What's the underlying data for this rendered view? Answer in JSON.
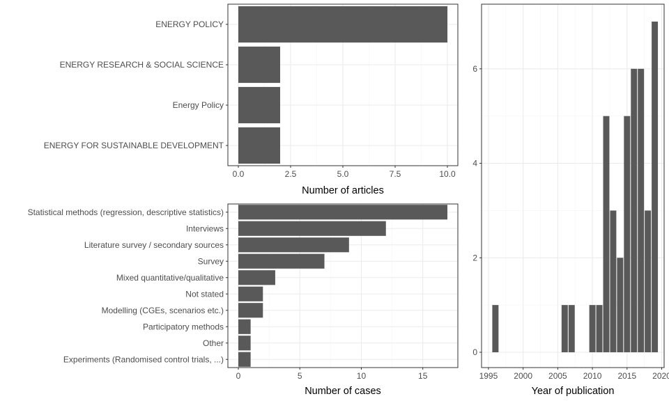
{
  "colors": {
    "bar": "#595959",
    "panel_border": "#333333",
    "grid_major": "#ebebeb",
    "grid_minor": "#f5f5f5",
    "tick_text": "#4d4d4d"
  },
  "chart_data": [
    {
      "type": "bar",
      "orientation": "horizontal",
      "categories": [
        "ENERGY POLICY",
        "ENERGY RESEARCH & SOCIAL SCIENCE",
        "Energy Policy",
        "ENERGY FOR SUSTAINABLE DEVELOPMENT"
      ],
      "values": [
        10,
        2,
        2,
        2
      ],
      "xlabel": "Number of articles",
      "xlim": [
        0,
        10
      ],
      "xticks": [
        0,
        2.5,
        5,
        7.5,
        10
      ],
      "xtick_labels": [
        "0.0",
        "2.5",
        "5.0",
        "7.5",
        "10.0"
      ],
      "grid": true
    },
    {
      "type": "bar",
      "orientation": "horizontal",
      "categories": [
        "Statistical methods (regression, descriptive statistics)",
        "Interviews",
        "Literature survey / secondary sources",
        "Survey",
        "Mixed quantitative/qualitative",
        "Not stated",
        "Modelling (CGEs, scenarios etc.)",
        "Participatory methods",
        "Other",
        "Experiments (Randomised control trials, ...)"
      ],
      "values": [
        17,
        12,
        9,
        7,
        3,
        2,
        2,
        1,
        1,
        1
      ],
      "xlabel": "Number of cases",
      "xlim": [
        0,
        17
      ],
      "xticks": [
        0,
        5,
        10,
        15
      ],
      "xtick_labels": [
        "0",
        "5",
        "10",
        "15"
      ],
      "grid": true
    },
    {
      "type": "bar",
      "orientation": "vertical",
      "x": [
        1996,
        2006,
        2007,
        2010,
        2011,
        2012,
        2013,
        2014,
        2015,
        2016,
        2017,
        2018,
        2019
      ],
      "values": [
        1,
        1,
        1,
        1,
        1,
        5,
        3,
        2,
        5,
        6,
        6,
        3,
        7
      ],
      "xlabel": "Year of publication",
      "xticks": [
        1995,
        2000,
        2005,
        2010,
        2015,
        2020
      ],
      "xtick_labels": [
        "1995",
        "2000",
        "2005",
        "2010",
        "2015",
        "2020"
      ],
      "yticks": [
        0,
        2,
        4,
        6
      ],
      "ytick_labels": [
        "0",
        "2",
        "4",
        "6"
      ],
      "ylim": [
        0,
        7
      ],
      "grid": true
    }
  ]
}
